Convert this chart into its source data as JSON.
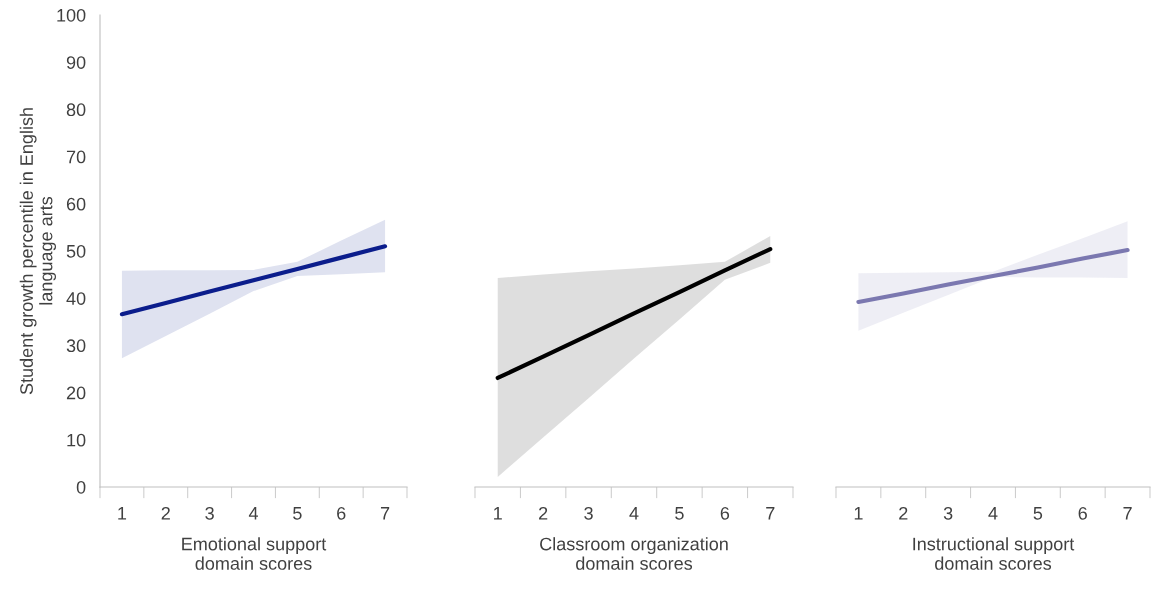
{
  "chart_data": [
    {
      "type": "line",
      "ylabel": "Student growth percentile in English\nlanguage arts",
      "xlabel": "Emotional support\ndomain scores",
      "categories": [
        "1",
        "2",
        "3",
        "4",
        "5",
        "6",
        "7"
      ],
      "ylim": [
        0,
        100
      ],
      "yticks": [
        0,
        10,
        20,
        30,
        40,
        50,
        60,
        70,
        80,
        90,
        100
      ],
      "grid": false,
      "legend": false,
      "series": [
        {
          "color": "#0b1d8c",
          "values": [
            36.6,
            39.0,
            41.4,
            43.8,
            46.2,
            48.6,
            51.0
          ],
          "lower": [
            27.3,
            32.0,
            36.7,
            41.5,
            44.7,
            45.1,
            45.5
          ],
          "upper": [
            45.8,
            45.9,
            45.9,
            46.0,
            47.7,
            52.2,
            56.6
          ]
        }
      ]
    },
    {
      "type": "line",
      "xlabel": "Classroom organization\ndomain scores",
      "categories": [
        "1",
        "2",
        "3",
        "4",
        "5",
        "6",
        "7"
      ],
      "ylim": [
        0,
        100
      ],
      "tick_labels": "x",
      "grid": false,
      "legend": false,
      "series": [
        {
          "color": "#000000",
          "values": [
            23.1,
            27.6,
            32.2,
            36.8,
            41.3,
            45.9,
            50.4
          ],
          "lower": [
            2.1,
            10.5,
            18.8,
            27.2,
            35.5,
            43.9,
            47.5
          ],
          "upper": [
            44.3,
            45.0,
            45.7,
            46.3,
            47.0,
            47.7,
            53.2
          ]
        }
      ]
    },
    {
      "type": "line",
      "xlabel": "Instructional support\ndomain scores",
      "categories": [
        "1",
        "2",
        "3",
        "4",
        "5",
        "6",
        "7"
      ],
      "ylim": [
        0,
        100
      ],
      "tick_labels": "x",
      "grid": false,
      "legend": false,
      "series": [
        {
          "color": "#7b78b0",
          "values": [
            39.2,
            41.0,
            42.9,
            44.7,
            46.5,
            48.4,
            50.2
          ],
          "lower": [
            33.1,
            36.9,
            40.7,
            44.5,
            44.4,
            44.4,
            44.3
          ],
          "upper": [
            45.3,
            45.4,
            45.5,
            45.6,
            49.2,
            52.7,
            56.3
          ]
        }
      ]
    }
  ]
}
